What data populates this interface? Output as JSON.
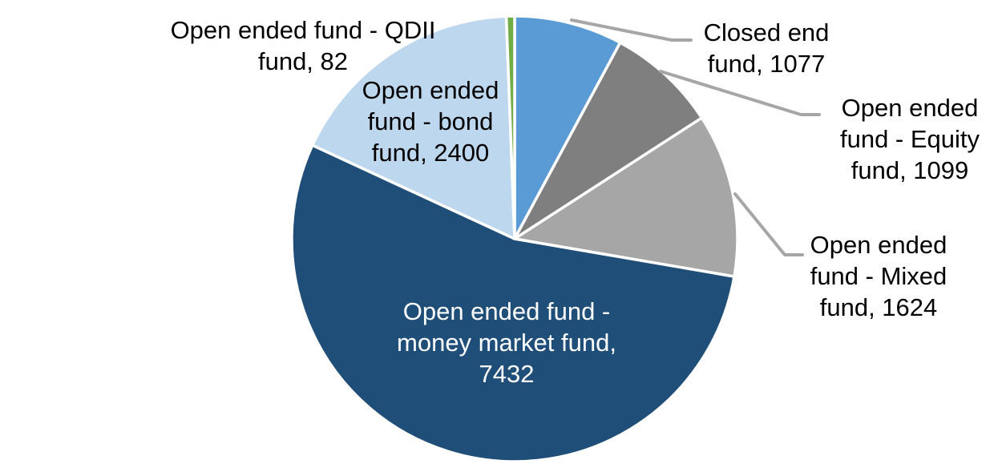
{
  "chart_data": {
    "type": "pie",
    "title": "",
    "direction": "clockwise",
    "start_angle_deg": 0,
    "total": 13714,
    "legend": "none",
    "data_label_format": "category name, value",
    "background_color": "#FFFFFF",
    "slice_gap_color": "#FFFFFF",
    "leader_line_color": "#A6A6A6",
    "slices": [
      {
        "id": "closed_end",
        "label": "Closed end fund",
        "value": 1077,
        "color": "#5B9BD5",
        "label_placement": "outside-right"
      },
      {
        "id": "equity",
        "label": "Open ended fund - Equity fund",
        "value": 1099,
        "color": "#7F7F7F",
        "label_placement": "outside-right"
      },
      {
        "id": "mixed",
        "label": "Open ended fund - Mixed fund",
        "value": 1624,
        "color": "#A6A6A6",
        "label_placement": "outside-right"
      },
      {
        "id": "money_market",
        "label": "Open ended fund - money market fund",
        "value": 7432,
        "color": "#1F4E79",
        "label_placement": "inside"
      },
      {
        "id": "bond",
        "label": "Open ended fund - bond fund",
        "value": 2400,
        "color": "#BDD7EE",
        "label_placement": "over-slice"
      },
      {
        "id": "qdii",
        "label": "Open ended fund - QDII fund",
        "value": 82,
        "color": "#70AD47",
        "label_placement": "outside-left"
      }
    ]
  },
  "labels": {
    "qdii": {
      "text": "Open ended fund - QDII\nfund, 82"
    },
    "bond": {
      "text": "Open ended\nfund - bond\nfund, 2400"
    },
    "closed_end": {
      "text": "Closed end\nfund, 1077"
    },
    "equity": {
      "text": "Open ended\nfund - Equity\nfund, 1099"
    },
    "mixed": {
      "text": "Open ended\nfund - Mixed\nfund, 1624"
    },
    "money_market": {
      "text": "Open ended fund -\nmoney market fund,\n7432"
    }
  }
}
